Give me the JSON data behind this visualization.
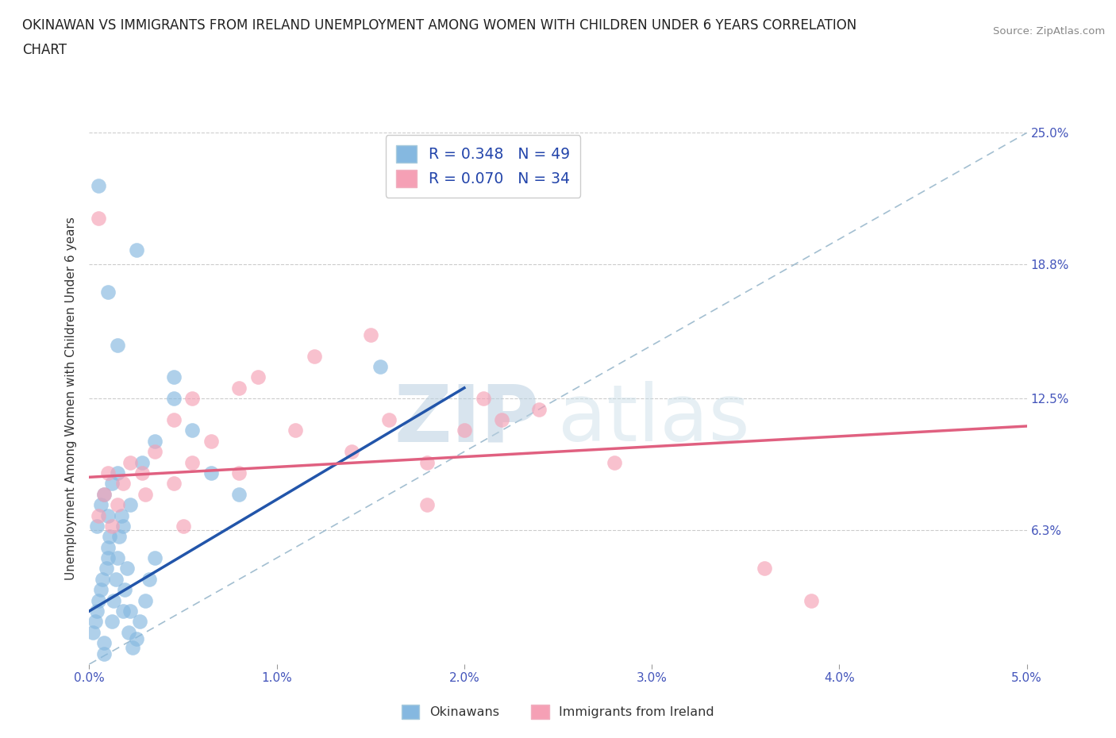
{
  "title_line1": "OKINAWAN VS IMMIGRANTS FROM IRELAND UNEMPLOYMENT AMONG WOMEN WITH CHILDREN UNDER 6 YEARS CORRELATION",
  "title_line2": "CHART",
  "source": "Source: ZipAtlas.com",
  "ylabel": "Unemployment Among Women with Children Under 6 years",
  "xlim": [
    0.0,
    5.0
  ],
  "ylim": [
    0.0,
    25.0
  ],
  "color_okinawan": "#85b8e0",
  "color_ireland": "#f5a0b5",
  "color_trendline_okinawan": "#2255aa",
  "color_trendline_ireland": "#e06080",
  "color_diagonal": "#99b8cc",
  "R_okinawan": 0.348,
  "N_okinawan": 49,
  "R_ireland": 0.07,
  "N_ireland": 34,
  "watermark_ZIP": "ZIP",
  "watermark_atlas": "atlas",
  "ok_x": [
    0.02,
    0.03,
    0.04,
    0.05,
    0.06,
    0.07,
    0.08,
    0.08,
    0.09,
    0.1,
    0.1,
    0.11,
    0.12,
    0.13,
    0.14,
    0.15,
    0.16,
    0.17,
    0.18,
    0.19,
    0.2,
    0.21,
    0.22,
    0.23,
    0.25,
    0.27,
    0.3,
    0.32,
    0.35,
    0.04,
    0.06,
    0.08,
    0.1,
    0.12,
    0.15,
    0.18,
    0.22,
    0.28,
    0.35,
    0.45,
    0.55,
    0.65,
    0.8,
    0.25,
    0.05,
    0.1,
    0.15,
    0.45,
    1.55
  ],
  "ok_y": [
    1.5,
    2.0,
    2.5,
    3.0,
    3.5,
    4.0,
    0.5,
    1.0,
    4.5,
    5.0,
    5.5,
    6.0,
    2.0,
    3.0,
    4.0,
    5.0,
    6.0,
    7.0,
    2.5,
    3.5,
    4.5,
    1.5,
    2.5,
    0.8,
    1.2,
    2.0,
    3.0,
    4.0,
    5.0,
    6.5,
    7.5,
    8.0,
    7.0,
    8.5,
    9.0,
    6.5,
    7.5,
    9.5,
    10.5,
    12.5,
    11.0,
    9.0,
    8.0,
    19.5,
    22.5,
    17.5,
    15.0,
    13.5,
    14.0
  ],
  "ir_x": [
    0.05,
    0.08,
    0.1,
    0.12,
    0.15,
    0.18,
    0.22,
    0.28,
    0.35,
    0.45,
    0.55,
    0.65,
    0.8,
    0.45,
    0.05,
    0.55,
    0.8,
    1.1,
    1.4,
    1.6,
    1.8,
    2.0,
    2.2,
    2.4,
    0.9,
    1.2,
    1.5,
    2.8,
    0.3,
    0.5,
    1.8,
    2.1,
    3.6,
    3.85
  ],
  "ir_y": [
    7.0,
    8.0,
    9.0,
    6.5,
    7.5,
    8.5,
    9.5,
    9.0,
    10.0,
    8.5,
    9.5,
    10.5,
    9.0,
    11.5,
    21.0,
    12.5,
    13.0,
    11.0,
    10.0,
    11.5,
    9.5,
    11.0,
    11.5,
    12.0,
    13.5,
    14.5,
    15.5,
    9.5,
    8.0,
    6.5,
    7.5,
    12.5,
    4.5,
    3.0
  ],
  "trendline_ok_x0": 0.0,
  "trendline_ok_y0": 2.5,
  "trendline_ok_x1": 2.0,
  "trendline_ok_y1": 13.0,
  "trendline_ir_x0": 0.0,
  "trendline_ir_y0": 8.8,
  "trendline_ir_x1": 5.0,
  "trendline_ir_y1": 11.2
}
